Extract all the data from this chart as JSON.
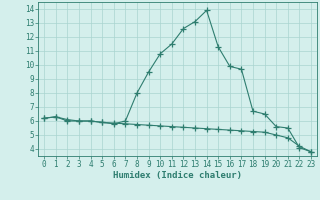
{
  "xlabel": "Humidex (Indice chaleur)",
  "x": [
    0,
    1,
    2,
    3,
    4,
    5,
    6,
    7,
    8,
    9,
    10,
    11,
    12,
    13,
    14,
    15,
    16,
    17,
    18,
    19,
    20,
    21,
    22,
    23
  ],
  "line1_y": [
    6.2,
    6.3,
    6.0,
    6.0,
    6.0,
    5.9,
    5.8,
    6.0,
    8.0,
    9.5,
    10.8,
    11.5,
    12.6,
    13.1,
    13.9,
    11.3,
    9.9,
    9.7,
    6.7,
    6.5,
    5.6,
    5.5,
    4.1,
    3.8
  ],
  "line2_y": [
    6.2,
    6.3,
    6.1,
    6.0,
    6.0,
    5.9,
    5.85,
    5.8,
    5.75,
    5.7,
    5.65,
    5.6,
    5.55,
    5.5,
    5.45,
    5.4,
    5.35,
    5.3,
    5.25,
    5.2,
    5.0,
    4.8,
    4.2,
    3.8
  ],
  "line_color": "#2e7d6f",
  "bg_color": "#d4efec",
  "grid_color": "#aad4d0",
  "xlim": [
    -0.5,
    23.5
  ],
  "ylim": [
    3.5,
    14.5
  ],
  "yticks": [
    4,
    5,
    6,
    7,
    8,
    9,
    10,
    11,
    12,
    13,
    14
  ],
  "xticks": [
    0,
    1,
    2,
    3,
    4,
    5,
    6,
    7,
    8,
    9,
    10,
    11,
    12,
    13,
    14,
    15,
    16,
    17,
    18,
    19,
    20,
    21,
    22,
    23
  ],
  "marker": "+",
  "markersize": 4,
  "linewidth": 0.8,
  "tick_fontsize": 5.5,
  "xlabel_fontsize": 6.5
}
